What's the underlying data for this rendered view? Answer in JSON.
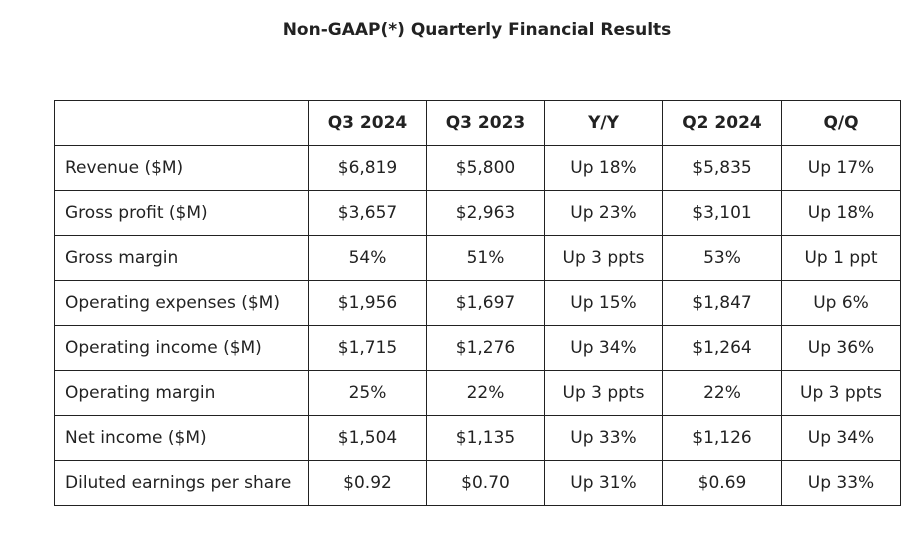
{
  "title": "Non-GAAP(*) Quarterly Financial Results",
  "table": {
    "headers": [
      "",
      "Q3 2024",
      "Q3 2023",
      "Y/Y",
      "Q2 2024",
      "Q/Q"
    ],
    "rows": [
      [
        "Revenue ($M)",
        "$6,819",
        "$5,800",
        "Up 18%",
        "$5,835",
        "Up 17%"
      ],
      [
        "Gross profit ($M)",
        "$3,657",
        "$2,963",
        "Up 23%",
        "$3,101",
        "Up 18%"
      ],
      [
        "Gross margin",
        "54%",
        "51%",
        "Up 3 ppts",
        "53%",
        "Up 1 ppt"
      ],
      [
        "Operating expenses ($M)",
        "$1,956",
        "$1,697",
        "Up 15%",
        "$1,847",
        "Up 6%"
      ],
      [
        "Operating income ($M)",
        "$1,715",
        "$1,276",
        "Up 34%",
        "$1,264",
        "Up 36%"
      ],
      [
        "Operating margin",
        "25%",
        "22%",
        "Up 3 ppts",
        "22%",
        "Up 3 ppts"
      ],
      [
        "Net income ($M)",
        "$1,504",
        "$1,135",
        "Up 33%",
        "$1,126",
        "Up 34%"
      ],
      [
        "Diluted earnings per share",
        "$0.92",
        "$0.70",
        "Up 31%",
        "$0.69",
        "Up 33%"
      ]
    ]
  }
}
